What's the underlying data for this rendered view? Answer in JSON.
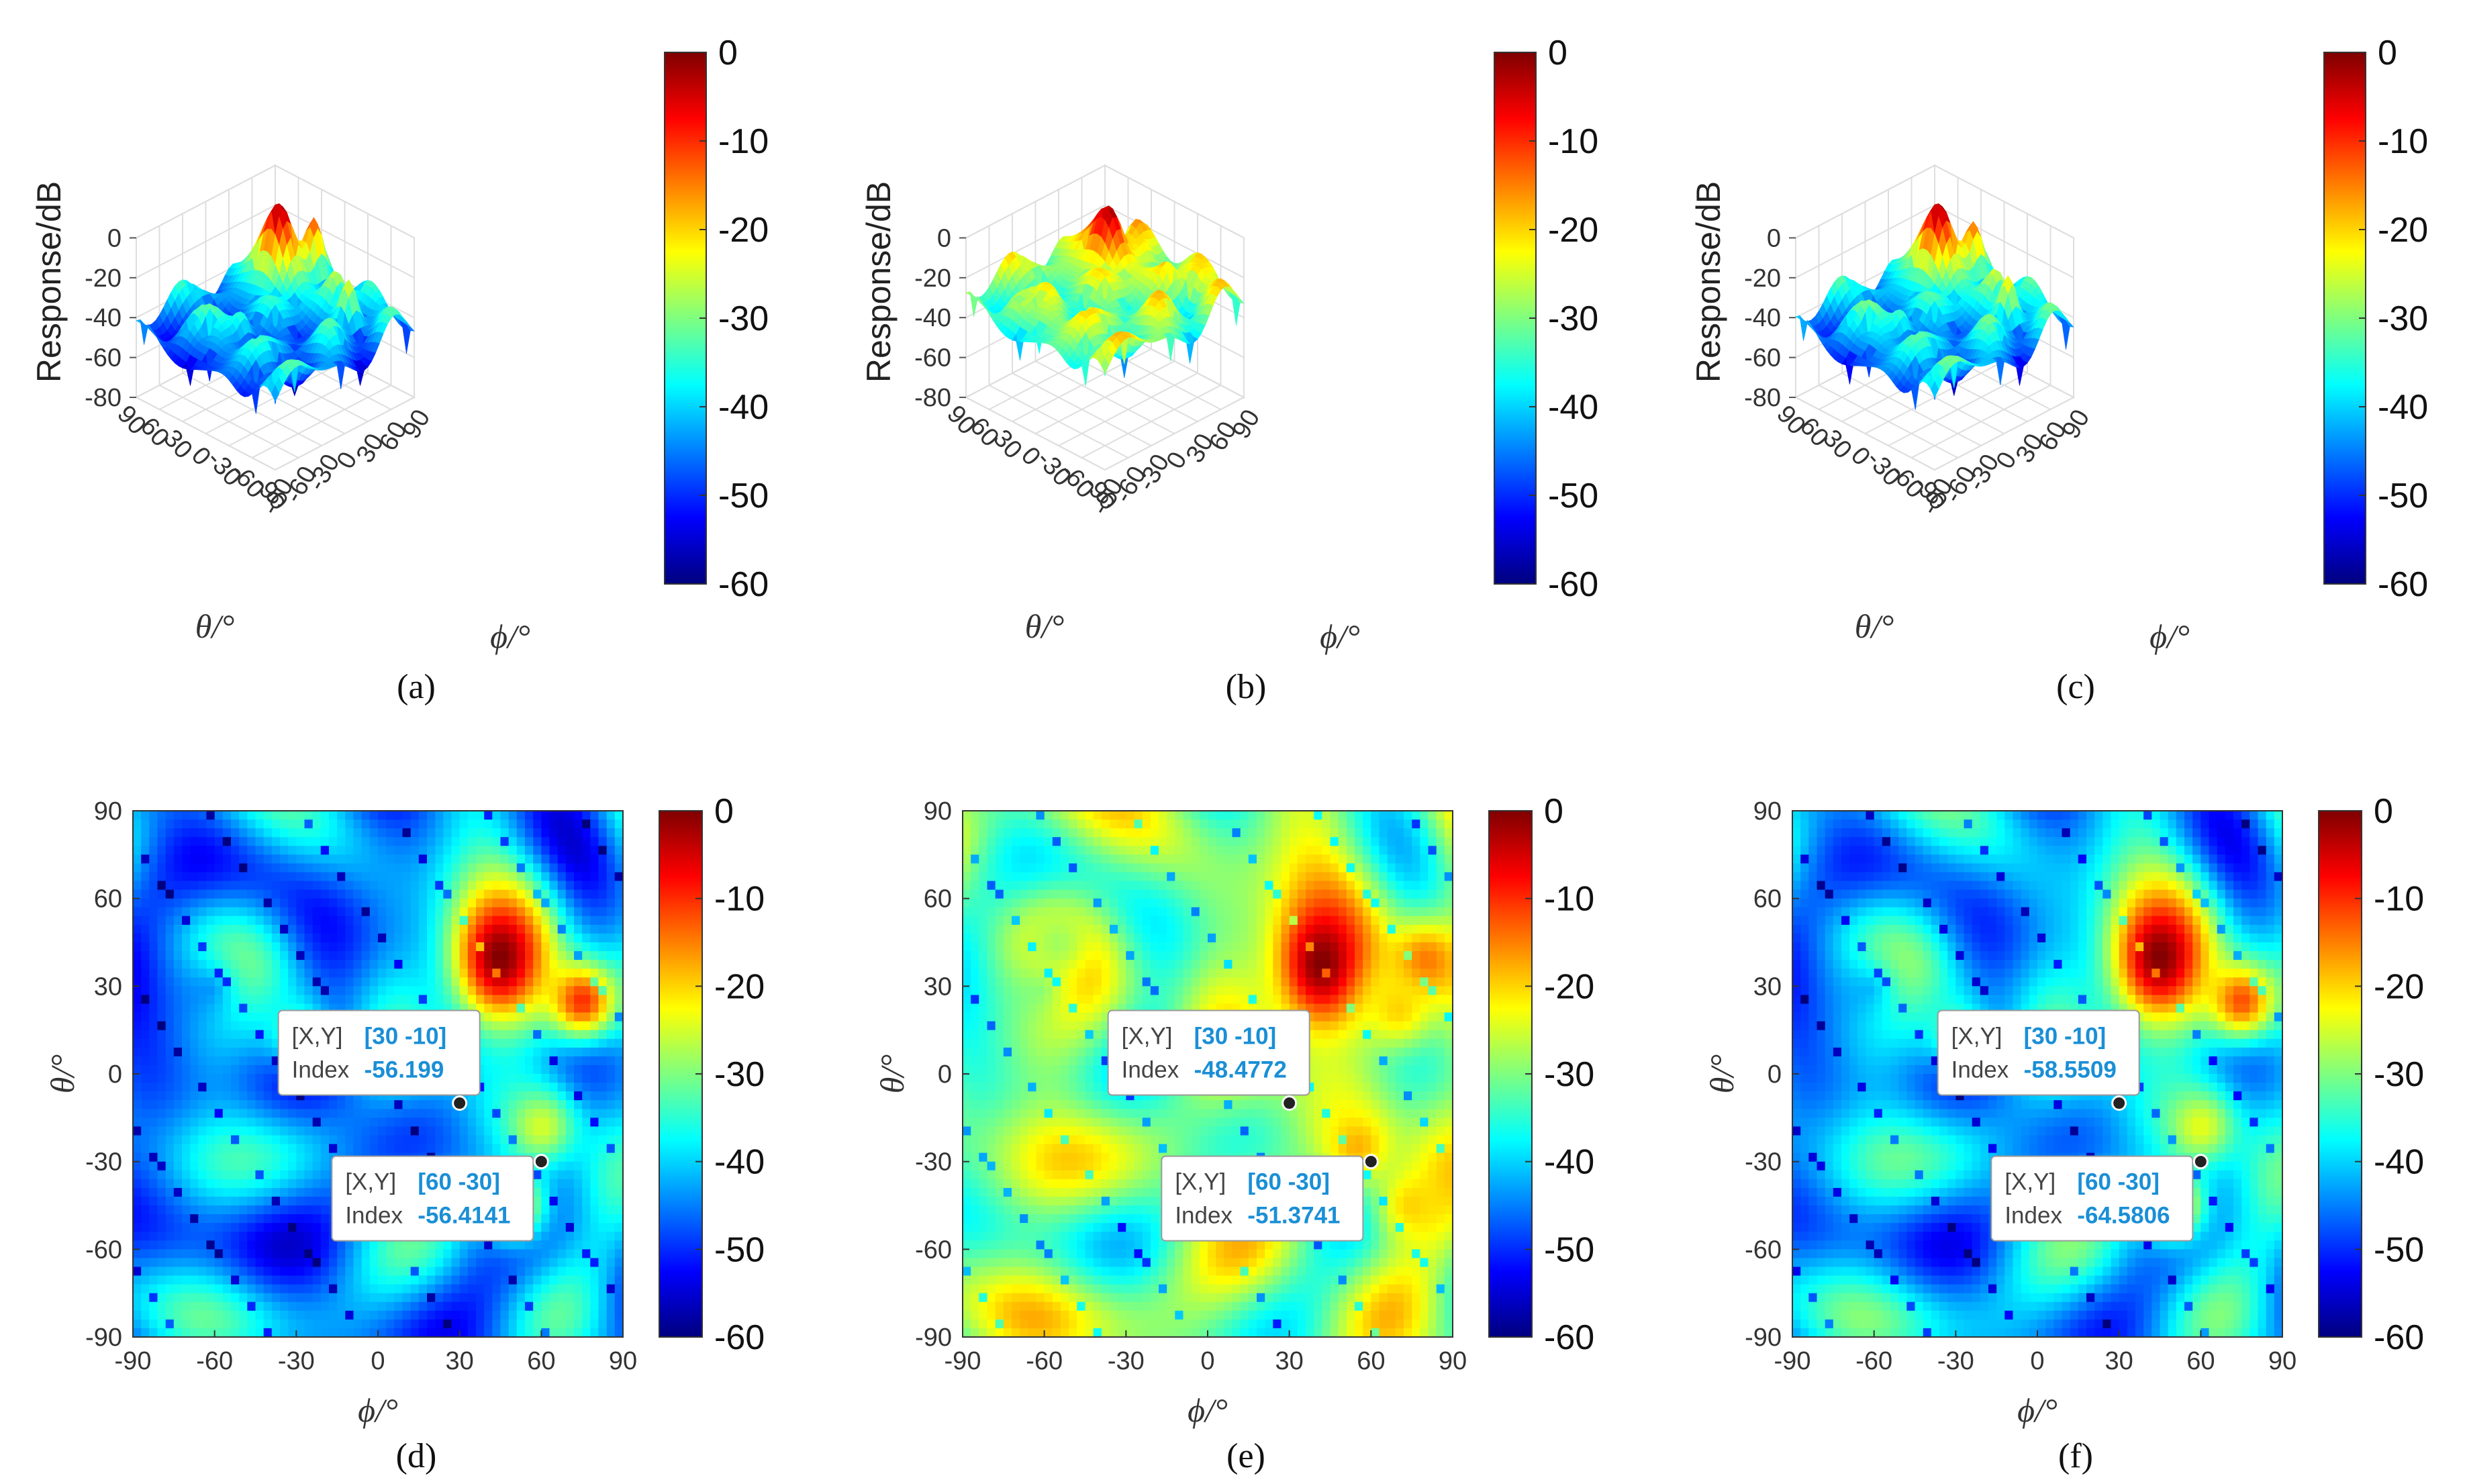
{
  "colormap": [
    "#00007f",
    "#0000ff",
    "#007fff",
    "#00ffff",
    "#7fff7f",
    "#ffff00",
    "#ff7f00",
    "#ff0000",
    "#7f0000"
  ],
  "chart_data": [
    {
      "type": "surface3d",
      "caption": "(a)",
      "zlabel": "Response/dB",
      "xlabel": "θ/°",
      "ylabel": "ϕ/°",
      "z_ticks": [
        "0",
        "-20",
        "-40",
        "-60",
        "-80"
      ],
      "theta_ticks": [
        "90",
        "60",
        "30",
        "0",
        "-30",
        "-60",
        "-90"
      ],
      "phi_ticks": [
        "-90",
        "-60",
        "-30",
        "0",
        "30",
        "60",
        "90"
      ],
      "colorbar_ticks": [
        "0",
        "-10",
        "-20",
        "-30",
        "-40",
        "-50",
        "-60"
      ],
      "clim": [
        -60,
        0
      ]
    },
    {
      "type": "surface3d",
      "caption": "(b)",
      "zlabel": "Response/dB",
      "xlabel": "θ/°",
      "ylabel": "ϕ/°",
      "z_ticks": [
        "0",
        "-20",
        "-40",
        "-60",
        "-80"
      ],
      "theta_ticks": [
        "90",
        "60",
        "30",
        "0",
        "-30",
        "-60",
        "-90"
      ],
      "phi_ticks": [
        "-90",
        "-60",
        "-30",
        "0",
        "30",
        "60",
        "90"
      ],
      "colorbar_ticks": [
        "0",
        "-10",
        "-20",
        "-30",
        "-40",
        "-50",
        "-60"
      ],
      "clim": [
        -60,
        0
      ]
    },
    {
      "type": "surface3d",
      "caption": "(c)",
      "zlabel": "Response/dB",
      "xlabel": "θ/°",
      "ylabel": "ϕ/°",
      "z_ticks": [
        "0",
        "-20",
        "-40",
        "-60",
        "-80"
      ],
      "theta_ticks": [
        "90",
        "60",
        "30",
        "0",
        "-30",
        "-60",
        "-90"
      ],
      "phi_ticks": [
        "-90",
        "-60",
        "-30",
        "0",
        "30",
        "60",
        "90"
      ],
      "colorbar_ticks": [
        "0",
        "-10",
        "-20",
        "-30",
        "-40",
        "-50",
        "-60"
      ],
      "clim": [
        -60,
        0
      ]
    },
    {
      "type": "heatmap",
      "caption": "(d)",
      "xlabel": "ϕ/°",
      "ylabel": "θ/°",
      "x_ticks": [
        "-90",
        "-60",
        "-30",
        "0",
        "30",
        "60",
        "90"
      ],
      "y_ticks": [
        "90",
        "60",
        "30",
        "0",
        "-30",
        "-60",
        "-90"
      ],
      "colorbar_ticks": [
        "0",
        "-10",
        "-20",
        "-30",
        "-40",
        "-50",
        "-60"
      ],
      "clim": [
        -60,
        0
      ],
      "datatips": [
        {
          "point": [
            30,
            -10
          ],
          "label_xy": "[X,Y]",
          "xy": "[30 -10]",
          "label_index": "Index",
          "index": "-56.199"
        },
        {
          "point": [
            60,
            -30
          ],
          "label_xy": "[X,Y]",
          "xy": "[60 -30]",
          "label_index": "Index",
          "index": "-56.4141"
        }
      ]
    },
    {
      "type": "heatmap",
      "caption": "(e)",
      "xlabel": "ϕ/°",
      "ylabel": "θ/°",
      "x_ticks": [
        "-90",
        "-60",
        "-30",
        "0",
        "30",
        "60",
        "90"
      ],
      "y_ticks": [
        "90",
        "60",
        "30",
        "0",
        "-30",
        "-60",
        "-90"
      ],
      "colorbar_ticks": [
        "0",
        "-10",
        "-20",
        "-30",
        "-40",
        "-50",
        "-60"
      ],
      "clim": [
        -60,
        0
      ],
      "datatips": [
        {
          "point": [
            30,
            -10
          ],
          "label_xy": "[X,Y]",
          "xy": "[30 -10]",
          "label_index": "Index",
          "index": "-48.4772"
        },
        {
          "point": [
            60,
            -30
          ],
          "label_xy": "[X,Y]",
          "xy": "[60 -30]",
          "label_index": "Index",
          "index": "-51.3741"
        }
      ]
    },
    {
      "type": "heatmap",
      "caption": "(f)",
      "xlabel": "ϕ/°",
      "ylabel": "θ/°",
      "x_ticks": [
        "-90",
        "-60",
        "-30",
        "0",
        "30",
        "60",
        "90"
      ],
      "y_ticks": [
        "90",
        "60",
        "30",
        "0",
        "-30",
        "-60",
        "-90"
      ],
      "colorbar_ticks": [
        "0",
        "-10",
        "-20",
        "-30",
        "-40",
        "-50",
        "-60"
      ],
      "clim": [
        -60,
        0
      ],
      "datatips": [
        {
          "point": [
            30,
            -10
          ],
          "label_xy": "[X,Y]",
          "xy": "[30 -10]",
          "label_index": "Index",
          "index": "-58.5509"
        },
        {
          "point": [
            60,
            -30
          ],
          "label_xy": "[X,Y]",
          "xy": "[60 -30]",
          "label_index": "Index",
          "index": "-64.5806"
        }
      ]
    }
  ]
}
